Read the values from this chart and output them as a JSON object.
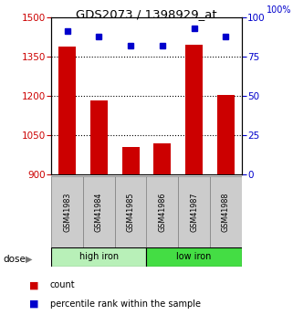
{
  "title": "GDS2073 / 1398929_at",
  "samples": [
    "GSM41983",
    "GSM41984",
    "GSM41985",
    "GSM41986",
    "GSM41987",
    "GSM41988"
  ],
  "count_values": [
    1390,
    1185,
    1005,
    1020,
    1395,
    1205
  ],
  "percentile_values": [
    91,
    88,
    82,
    82,
    93,
    88
  ],
  "ylim_left": [
    900,
    1500
  ],
  "ylim_right": [
    0,
    100
  ],
  "yticks_left": [
    900,
    1050,
    1200,
    1350,
    1500
  ],
  "yticks_right": [
    0,
    25,
    50,
    75,
    100
  ],
  "groups": [
    {
      "label": "high iron",
      "color": "#b8f0b8"
    },
    {
      "label": "low iron",
      "color": "#44dd44"
    }
  ],
  "bar_color": "#cc0000",
  "dot_color": "#0000cc",
  "bar_width": 0.55,
  "left_tick_color": "#cc0000",
  "right_tick_color": "#0000cc",
  "grid_color": "#000000",
  "dose_label": "dose",
  "legend_items": [
    "count",
    "percentile rank within the sample"
  ]
}
